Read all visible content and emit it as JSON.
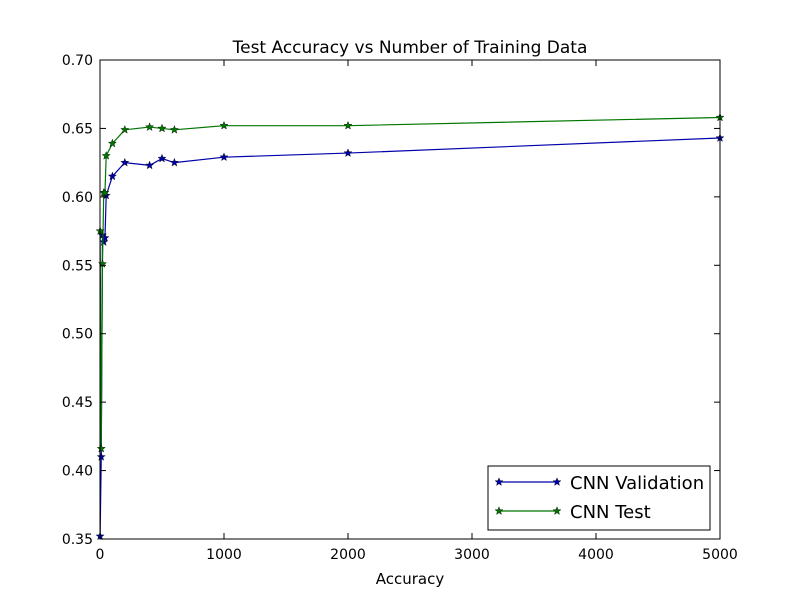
{
  "chart_data": {
    "type": "line",
    "title": "Test Accuracy vs Number of Training Data",
    "xlabel": "Accuracy",
    "ylabel": "",
    "xlim": [
      0,
      5000
    ],
    "ylim": [
      0.35,
      0.7
    ],
    "xticks": [
      0,
      1000,
      2000,
      3000,
      4000,
      5000
    ],
    "yticks": [
      0.35,
      0.4,
      0.45,
      0.5,
      0.55,
      0.6,
      0.65,
      0.7
    ],
    "xtick_labels": [
      "0",
      "1000",
      "2000",
      "3000",
      "4000",
      "5000"
    ],
    "ytick_labels": [
      "0.35",
      "0.40",
      "0.45",
      "0.50",
      "0.55",
      "0.60",
      "0.65",
      "0.70"
    ],
    "grid": false,
    "legend_position": "lower-right",
    "marker": "star",
    "series": [
      {
        "name": "CNN Validation",
        "color": "#0000aa",
        "x": [
          1,
          10,
          20,
          30,
          40,
          50,
          100,
          200,
          400,
          500,
          600,
          1000,
          2000,
          5000
        ],
        "y": [
          0.352,
          0.41,
          0.572,
          0.567,
          0.57,
          0.601,
          0.615,
          0.625,
          0.623,
          0.628,
          0.625,
          0.629,
          0.632,
          0.643
        ]
      },
      {
        "name": "CNN Test",
        "color": "#007700",
        "x": [
          1,
          10,
          20,
          30,
          40,
          50,
          100,
          200,
          400,
          500,
          600,
          1000,
          2000,
          5000
        ],
        "y": [
          0.575,
          0.416,
          0.551,
          0.603,
          0.603,
          0.63,
          0.639,
          0.649,
          0.651,
          0.65,
          0.649,
          0.652,
          0.652,
          0.658
        ]
      }
    ]
  }
}
